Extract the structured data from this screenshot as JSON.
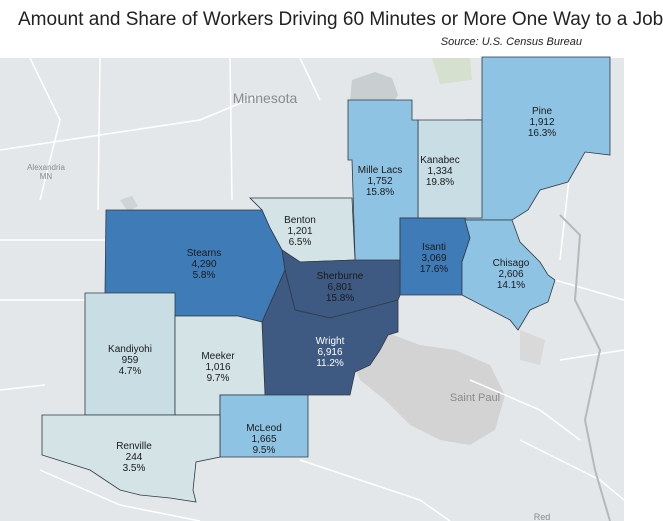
{
  "title": "Amount and Share of Workers Driving 60 Minutes or More One Way to a Job",
  "source": "Source: U.S. Census Bureau",
  "places": {
    "state": "Minnesota",
    "alexandria": "Alexandria",
    "alexandria_state": "MN",
    "saint_paul": "Saint Paul",
    "red": "Red"
  },
  "colors": {
    "background": "#e4e7e9",
    "road": "#ffffff",
    "water": "#c9ced1",
    "urban": "#d3d3d3",
    "darkest": "#3e5a82",
    "dark": "#3f7bb6",
    "medium": "#4a8fc7",
    "light_blue": "#8fc3e3",
    "pale": "#c8dde4",
    "palest": "#d3e3e6"
  },
  "counties": [
    {
      "name": "Pine",
      "workers": "1,912",
      "share": "16.3%"
    },
    {
      "name": "Mille Lacs",
      "workers": "1,752",
      "share": "15.8%"
    },
    {
      "name": "Kanabec",
      "workers": "1,334",
      "share": "19.8%"
    },
    {
      "name": "Benton",
      "workers": "1,201",
      "share": "6.5%"
    },
    {
      "name": "Stearns",
      "workers": "4,290",
      "share": "5.8%"
    },
    {
      "name": "Isanti",
      "workers": "3,069",
      "share": "17.6%"
    },
    {
      "name": "Chisago",
      "workers": "2,606",
      "share": "14.1%"
    },
    {
      "name": "Sherburne",
      "workers": "6,801",
      "share": "15.8%"
    },
    {
      "name": "Wright",
      "workers": "6,916",
      "share": "11.2%"
    },
    {
      "name": "Kandiyohi",
      "workers": "959",
      "share": "4.7%"
    },
    {
      "name": "Meeker",
      "workers": "1,016",
      "share": "9.7%"
    },
    {
      "name": "McLeod",
      "workers": "1,665",
      "share": "9.5%"
    },
    {
      "name": "Renville",
      "workers": "244",
      "share": "3.5%"
    }
  ]
}
